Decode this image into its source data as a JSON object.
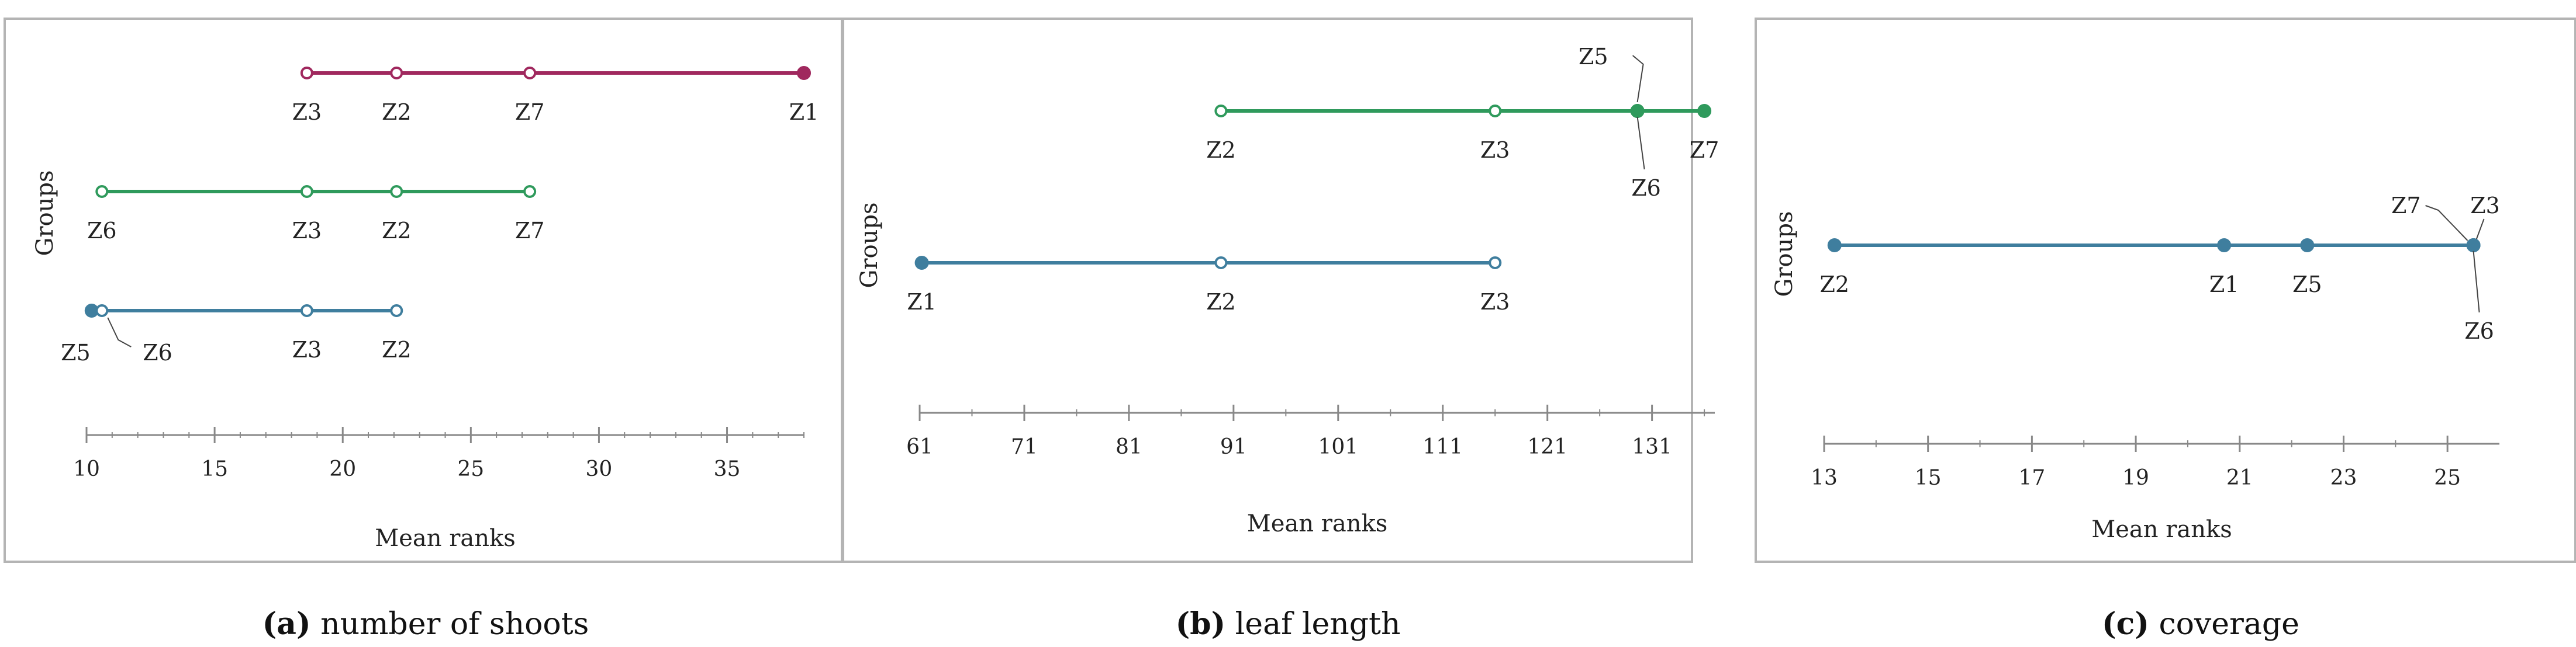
{
  "colors": {
    "magenta": "#a0285e",
    "green": "#2f9a5c",
    "blue": "#3f7e9e",
    "axis": "#888888",
    "frame": "#b4b4b4"
  },
  "chart_data": [
    {
      "type": "scatter",
      "panel_tag": "(a)",
      "panel_title": "number of shoots",
      "ylabel": "Groups",
      "xlabel": "Mean ranks",
      "xlim": [
        10,
        38
      ],
      "ticks": [
        10,
        15,
        20,
        25,
        30,
        35
      ],
      "groups": [
        {
          "color": "#a0285e",
          "points": [
            {
              "label": "Z3",
              "x": 18.6,
              "filled": false
            },
            {
              "label": "Z2",
              "x": 22.1,
              "filled": false
            },
            {
              "label": "Z7",
              "x": 27.3,
              "filled": false
            },
            {
              "label": "Z1",
              "x": 38.0,
              "filled": true
            }
          ]
        },
        {
          "color": "#2f9a5c",
          "points": [
            {
              "label": "Z6",
              "x": 10.6,
              "filled": false
            },
            {
              "label": "Z3",
              "x": 18.6,
              "filled": false
            },
            {
              "label": "Z2",
              "x": 22.1,
              "filled": false
            },
            {
              "label": "Z7",
              "x": 27.3,
              "filled": false
            }
          ]
        },
        {
          "color": "#3f7e9e",
          "points": [
            {
              "label": "Z5",
              "x": 10.2,
              "filled": true
            },
            {
              "label": "Z6",
              "x": 10.6,
              "filled": false
            },
            {
              "label": "Z3",
              "x": 18.6,
              "filled": false
            },
            {
              "label": "Z2",
              "x": 22.1,
              "filled": false
            }
          ]
        }
      ]
    },
    {
      "type": "scatter",
      "panel_tag": "(b)",
      "panel_title": "leaf length",
      "ylabel": "Groups",
      "xlabel": "Mean ranks",
      "xlim": [
        61,
        137
      ],
      "ticks": [
        61,
        71,
        81,
        91,
        101,
        111,
        121,
        131
      ],
      "groups": [
        {
          "color": "#2f9a5c",
          "points": [
            {
              "label": "Z2",
              "x": 89.8,
              "filled": false
            },
            {
              "label": "Z3",
              "x": 116.0,
              "filled": false
            },
            {
              "label": "Z5",
              "x": 129.6,
              "filled": true
            },
            {
              "label": "Z6",
              "x": 129.6,
              "filled": true
            },
            {
              "label": "Z7",
              "x": 136.0,
              "filled": true
            }
          ]
        },
        {
          "color": "#3f7e9e",
          "points": [
            {
              "label": "Z1",
              "x": 61.2,
              "filled": true
            },
            {
              "label": "Z2",
              "x": 89.8,
              "filled": false
            },
            {
              "label": "Z3",
              "x": 116.0,
              "filled": false
            }
          ]
        }
      ]
    },
    {
      "type": "scatter",
      "panel_tag": "(c)",
      "panel_title": "coverage",
      "ylabel": "Groups",
      "xlabel": "Mean ranks",
      "xlim": [
        13,
        26
      ],
      "ticks": [
        13,
        15,
        17,
        19,
        21,
        23,
        25
      ],
      "groups": [
        {
          "color": "#3f7e9e",
          "points": [
            {
              "label": "Z2",
              "x": 13.2,
              "filled": true
            },
            {
              "label": "Z1",
              "x": 20.7,
              "filled": true
            },
            {
              "label": "Z5",
              "x": 22.3,
              "filled": true
            },
            {
              "label": "Z7",
              "x": 25.5,
              "filled": true
            },
            {
              "label": "Z3",
              "x": 25.5,
              "filled": true
            },
            {
              "label": "Z6",
              "x": 25.5,
              "filled": true
            }
          ]
        }
      ]
    }
  ]
}
